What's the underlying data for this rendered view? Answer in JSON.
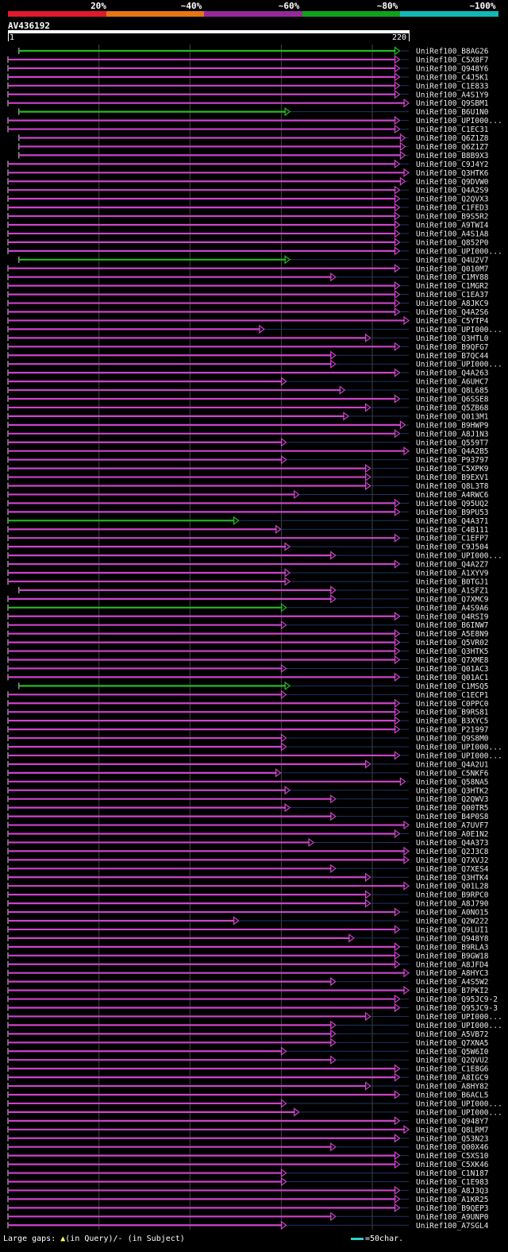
{
  "scale": {
    "labels": [
      "20%",
      "~40%",
      "~60%",
      "~80%",
      "~100%"
    ],
    "colors": [
      "#e11a2b",
      "#e87514",
      "#97289a",
      "#11a11b",
      "#12b7b6"
    ]
  },
  "query": {
    "name": "AV436192",
    "start": "1",
    "end": "220",
    "length": 220
  },
  "legend": {
    "text": "Large gaps: ",
    "query_marker": "▲",
    "query_text": "(in Query)/",
    "subject_marker": "-",
    "subject_text": " (in Subject)",
    "scale_text": "=50char."
  },
  "colors": {
    "magenta": "#cc44cc",
    "green": "#22bb22",
    "tri": "#ffff66",
    "grid": "#444"
  },
  "hits": [
    {
      "label": "UniRef100_B8AG26",
      "color": "green",
      "start": 7,
      "end": 215
    },
    {
      "label": "UniRef100_C5X8F7",
      "color": "magenta",
      "start": 1,
      "end": 215
    },
    {
      "label": "UniRef100_Q948Y6",
      "color": "magenta",
      "start": 1,
      "end": 215
    },
    {
      "label": "UniRef100_C4J5K1",
      "color": "magenta",
      "start": 1,
      "end": 215
    },
    {
      "label": "UniRef100_C1E833",
      "color": "magenta",
      "start": 1,
      "end": 215
    },
    {
      "label": "UniRef100_A4S1Y9",
      "color": "magenta",
      "start": 1,
      "end": 215
    },
    {
      "label": "UniRef100_Q9SBM1",
      "color": "magenta",
      "start": 1,
      "end": 220
    },
    {
      "label": "UniRef100_B6U1N0",
      "color": "green",
      "start": 7,
      "end": 155
    },
    {
      "label": "UniRef100_UPI000...",
      "color": "magenta",
      "start": 1,
      "end": 215
    },
    {
      "label": "UniRef100_C1EC31",
      "color": "magenta",
      "start": 1,
      "end": 215
    },
    {
      "label": "UniRef100_Q6Z1Z8",
      "color": "magenta",
      "start": 7,
      "end": 218
    },
    {
      "label": "UniRef100_Q6Z1Z7",
      "color": "magenta",
      "start": 7,
      "end": 218
    },
    {
      "label": "UniRef100_B8B9X3",
      "color": "magenta",
      "start": 7,
      "end": 218
    },
    {
      "label": "UniRef100_C9J4Y2",
      "color": "magenta",
      "start": 1,
      "end": 215
    },
    {
      "label": "UniRef100_Q3HTK6",
      "color": "magenta",
      "start": 1,
      "end": 220
    },
    {
      "label": "UniRef100_Q9DVW0",
      "color": "magenta",
      "start": 1,
      "end": 218
    },
    {
      "label": "UniRef100_Q4A2S9",
      "color": "magenta",
      "start": 1,
      "end": 215
    },
    {
      "label": "UniRef100_Q2QVX3",
      "color": "magenta",
      "start": 1,
      "end": 215
    },
    {
      "label": "UniRef100_C1FED3",
      "color": "magenta",
      "start": 1,
      "end": 215
    },
    {
      "label": "UniRef100_B9S5R2",
      "color": "magenta",
      "start": 1,
      "end": 215
    },
    {
      "label": "UniRef100_A9TWI4",
      "color": "magenta",
      "start": 1,
      "end": 215
    },
    {
      "label": "UniRef100_A4S1A8",
      "color": "magenta",
      "start": 1,
      "end": 215
    },
    {
      "label": "UniRef100_Q852P0",
      "color": "magenta",
      "start": 1,
      "end": 215
    },
    {
      "label": "UniRef100_UPI000...",
      "color": "magenta",
      "start": 1,
      "end": 215
    },
    {
      "label": "UniRef100_Q4U2V7",
      "color": "green",
      "start": 7,
      "end": 155
    },
    {
      "label": "UniRef100_Q010M7",
      "color": "magenta",
      "start": 1,
      "end": 215
    },
    {
      "label": "UniRef100_C1MY88",
      "color": "magenta",
      "start": 1,
      "end": 180
    },
    {
      "label": "UniRef100_C1MGR2",
      "color": "magenta",
      "start": 1,
      "end": 215
    },
    {
      "label": "UniRef100_C1EA37",
      "color": "magenta",
      "start": 1,
      "end": 215
    },
    {
      "label": "UniRef100_A8JKC9",
      "color": "magenta",
      "start": 1,
      "end": 215
    },
    {
      "label": "UniRef100_Q4A2S6",
      "color": "magenta",
      "start": 1,
      "end": 215
    },
    {
      "label": "UniRef100_C5YTP4",
      "color": "magenta",
      "start": 1,
      "end": 220
    },
    {
      "label": "UniRef100_UPI000...",
      "color": "magenta",
      "start": 1,
      "end": 141
    },
    {
      "label": "UniRef100_Q3HTL0",
      "color": "magenta",
      "start": 1,
      "end": 199
    },
    {
      "label": "UniRef100_B9QFG7",
      "color": "magenta",
      "start": 1,
      "end": 215
    },
    {
      "label": "UniRef100_B7QC44",
      "color": "magenta",
      "start": 1,
      "end": 180
    },
    {
      "label": "UniRef100_UPI000...",
      "color": "magenta",
      "start": 1,
      "end": 180
    },
    {
      "label": "UniRef100_Q4A263",
      "color": "magenta",
      "start": 1,
      "end": 215
    },
    {
      "label": "UniRef100_A6UHC7",
      "color": "magenta",
      "start": 1,
      "end": 153
    },
    {
      "label": "UniRef100_Q8L685",
      "color": "magenta",
      "start": 1,
      "end": 185
    },
    {
      "label": "UniRef100_Q6SSE8",
      "color": "magenta",
      "start": 1,
      "end": 215
    },
    {
      "label": "UniRef100_Q5ZB68",
      "color": "magenta",
      "start": 1,
      "end": 199
    },
    {
      "label": "UniRef100_Q013M1",
      "color": "magenta",
      "start": 1,
      "end": 187
    },
    {
      "label": "UniRef100_B9HWP9",
      "color": "magenta",
      "start": 1,
      "end": 218
    },
    {
      "label": "UniRef100_A8J1N3",
      "color": "magenta",
      "start": 1,
      "end": 215
    },
    {
      "label": "UniRef100_Q559T7",
      "color": "magenta",
      "start": 1,
      "end": 153
    },
    {
      "label": "UniRef100_Q4A2B5",
      "color": "magenta",
      "start": 1,
      "end": 220
    },
    {
      "label": "UniRef100_P93797",
      "color": "magenta",
      "start": 1,
      "end": 153
    },
    {
      "label": "UniRef100_C5XPK9",
      "color": "magenta",
      "start": 1,
      "end": 199
    },
    {
      "label": "UniRef100_B9EXV1",
      "color": "magenta",
      "start": 1,
      "end": 199
    },
    {
      "label": "UniRef100_Q8L3T8",
      "color": "magenta",
      "start": 1,
      "end": 199
    },
    {
      "label": "UniRef100_A4RWC6",
      "color": "magenta",
      "start": 1,
      "end": 160
    },
    {
      "label": "UniRef100_Q95UQ2",
      "color": "magenta",
      "start": 1,
      "end": 215
    },
    {
      "label": "UniRef100_B9PU53",
      "color": "magenta",
      "start": 1,
      "end": 215
    },
    {
      "label": "UniRef100_Q4A371",
      "color": "green",
      "start": 1,
      "end": 127
    },
    {
      "label": "UniRef100_C4B111",
      "color": "magenta",
      "start": 1,
      "end": 150
    },
    {
      "label": "UniRef100_C1EFP7",
      "color": "magenta",
      "start": 1,
      "end": 215
    },
    {
      "label": "UniRef100_C9J504",
      "color": "magenta",
      "start": 1,
      "end": 155
    },
    {
      "label": "UniRef100_UPI000...",
      "color": "magenta",
      "start": 1,
      "end": 180
    },
    {
      "label": "UniRef100_Q4A2Z7",
      "color": "magenta",
      "start": 1,
      "end": 215
    },
    {
      "label": "UniRef100_A1XYV9",
      "color": "magenta",
      "start": 1,
      "end": 155
    },
    {
      "label": "UniRef100_B0TGJ1",
      "color": "magenta",
      "start": 1,
      "end": 155
    },
    {
      "label": "UniRef100_A1SFZ1",
      "color": "magenta",
      "start": 7,
      "end": 180
    },
    {
      "label": "UniRef100_Q7XMC9",
      "color": "magenta",
      "start": 1,
      "end": 180
    },
    {
      "label": "UniRef100_A4S9A6",
      "color": "green",
      "start": 1,
      "end": 153
    },
    {
      "label": "UniRef100_Q4RSI9",
      "color": "magenta",
      "start": 1,
      "end": 215
    },
    {
      "label": "UniRef100_B6INW7",
      "color": "magenta",
      "start": 1,
      "end": 153
    },
    {
      "label": "UniRef100_A5E8N9",
      "color": "magenta",
      "start": 1,
      "end": 215
    },
    {
      "label": "UniRef100_Q5VR02",
      "color": "magenta",
      "start": 1,
      "end": 215
    },
    {
      "label": "UniRef100_Q3HTK5",
      "color": "magenta",
      "start": 1,
      "end": 215
    },
    {
      "label": "UniRef100_Q7XME8",
      "color": "magenta",
      "start": 1,
      "end": 215
    },
    {
      "label": "UniRef100_Q01AC3",
      "color": "magenta",
      "start": 1,
      "end": 153
    },
    {
      "label": "UniRef100_Q01AC1",
      "color": "magenta",
      "start": 1,
      "end": 215
    },
    {
      "label": "UniRef100_C1MSQ5",
      "color": "green",
      "start": 7,
      "end": 155
    },
    {
      "label": "UniRef100_C1ECP1",
      "color": "magenta",
      "start": 1,
      "end": 153
    },
    {
      "label": "UniRef100_C0PPC0",
      "color": "magenta",
      "start": 1,
      "end": 215
    },
    {
      "label": "UniRef100_B9RS81",
      "color": "magenta",
      "start": 1,
      "end": 215
    },
    {
      "label": "UniRef100_B3XYC5",
      "color": "magenta",
      "start": 1,
      "end": 215
    },
    {
      "label": "UniRef100_P21997",
      "color": "magenta",
      "start": 1,
      "end": 215
    },
    {
      "label": "UniRef100_Q9S8M0",
      "color": "magenta",
      "start": 1,
      "end": 153
    },
    {
      "label": "UniRef100_UPI000...",
      "color": "magenta",
      "start": 1,
      "end": 153
    },
    {
      "label": "UniRef100_UPI000...",
      "color": "magenta",
      "start": 1,
      "end": 215
    },
    {
      "label": "UniRef100_Q4A2U1",
      "color": "magenta",
      "start": 1,
      "end": 199
    },
    {
      "label": "UniRef100_C5NKF6",
      "color": "magenta",
      "start": 1,
      "end": 150
    },
    {
      "label": "UniRef100_Q58NA5",
      "color": "magenta",
      "start": 1,
      "end": 218
    },
    {
      "label": "UniRef100_Q3HTK2",
      "color": "magenta",
      "start": 1,
      "end": 155
    },
    {
      "label": "UniRef100_Q2QWV3",
      "color": "magenta",
      "start": 1,
      "end": 180
    },
    {
      "label": "UniRef100_Q00TR5",
      "color": "magenta",
      "start": 1,
      "end": 155
    },
    {
      "label": "UniRef100_B4P0S8",
      "color": "magenta",
      "start": 1,
      "end": 180
    },
    {
      "label": "UniRef100_A7UVF7",
      "color": "magenta",
      "start": 1,
      "end": 220
    },
    {
      "label": "UniRef100_A0E1N2",
      "color": "magenta",
      "start": 1,
      "end": 215
    },
    {
      "label": "UniRef100_Q4A373",
      "color": "magenta",
      "start": 1,
      "end": 168
    },
    {
      "label": "UniRef100_Q2J3C8",
      "color": "magenta",
      "start": 1,
      "end": 220
    },
    {
      "label": "UniRef100_Q7XVJ2",
      "color": "magenta",
      "start": 1,
      "end": 220
    },
    {
      "label": "UniRef100_Q7XES4",
      "color": "magenta",
      "start": 1,
      "end": 180
    },
    {
      "label": "UniRef100_Q3HTK4",
      "color": "magenta",
      "start": 1,
      "end": 199
    },
    {
      "label": "UniRef100_Q01L28",
      "color": "magenta",
      "start": 1,
      "end": 220
    },
    {
      "label": "UniRef100_B9RPC0",
      "color": "magenta",
      "start": 1,
      "end": 199
    },
    {
      "label": "UniRef100_A8J790",
      "color": "magenta",
      "start": 1,
      "end": 199
    },
    {
      "label": "UniRef100_A0NO15",
      "color": "magenta",
      "start": 1,
      "end": 215
    },
    {
      "label": "UniRef100_Q2W222",
      "color": "magenta",
      "start": 1,
      "end": 127
    },
    {
      "label": "UniRef100_Q9LUI1",
      "color": "magenta",
      "start": 1,
      "end": 215
    },
    {
      "label": "UniRef100_Q948Y8",
      "color": "magenta",
      "start": 1,
      "end": 190
    },
    {
      "label": "UniRef100_B9RLA3",
      "color": "magenta",
      "start": 1,
      "end": 215
    },
    {
      "label": "UniRef100_B9GW18",
      "color": "magenta",
      "start": 1,
      "end": 215
    },
    {
      "label": "UniRef100_A8JFD4",
      "color": "magenta",
      "start": 1,
      "end": 215
    },
    {
      "label": "UniRef100_A8HYC3",
      "color": "magenta",
      "start": 1,
      "end": 220
    },
    {
      "label": "UniRef100_A4S5W2",
      "color": "magenta",
      "start": 1,
      "end": 180
    },
    {
      "label": "UniRef100_B7PKI2",
      "color": "magenta",
      "start": 1,
      "end": 220
    },
    {
      "label": "UniRef100_Q95JC9-2",
      "color": "magenta",
      "start": 1,
      "end": 215
    },
    {
      "label": "UniRef100_Q95JC9-3",
      "color": "magenta",
      "start": 1,
      "end": 215
    },
    {
      "label": "UniRef100_UPI000...",
      "color": "magenta",
      "start": 1,
      "end": 199
    },
    {
      "label": "UniRef100_UPI000...",
      "color": "magenta",
      "start": 1,
      "end": 180
    },
    {
      "label": "UniRef100_A5VB72",
      "color": "magenta",
      "start": 1,
      "end": 180
    },
    {
      "label": "UniRef100_Q7XNA5",
      "color": "magenta",
      "start": 1,
      "end": 180
    },
    {
      "label": "UniRef100_Q5W6I0",
      "color": "magenta",
      "start": 1,
      "end": 153
    },
    {
      "label": "UniRef100_Q2QVU2",
      "color": "magenta",
      "start": 1,
      "end": 180
    },
    {
      "label": "UniRef100_C1E8G6",
      "color": "magenta",
      "start": 1,
      "end": 215
    },
    {
      "label": "UniRef100_A8IGC9",
      "color": "magenta",
      "start": 1,
      "end": 215
    },
    {
      "label": "UniRef100_A8HY82",
      "color": "magenta",
      "start": 1,
      "end": 199
    },
    {
      "label": "UniRef100_B6ACL5",
      "color": "magenta",
      "start": 1,
      "end": 215
    },
    {
      "label": "UniRef100_UPI000...",
      "color": "magenta",
      "start": 1,
      "end": 153
    },
    {
      "label": "UniRef100_UPI000...",
      "color": "magenta",
      "start": 1,
      "end": 160
    },
    {
      "label": "UniRef100_Q948Y7",
      "color": "magenta",
      "start": 1,
      "end": 215
    },
    {
      "label": "UniRef100_Q8LRM7",
      "color": "magenta",
      "start": 1,
      "end": 220
    },
    {
      "label": "UniRef100_Q53N23",
      "color": "magenta",
      "start": 1,
      "end": 215
    },
    {
      "label": "UniRef100_Q00X46",
      "color": "magenta",
      "start": 1,
      "end": 180
    },
    {
      "label": "UniRef100_C5XS10",
      "color": "magenta",
      "start": 1,
      "end": 215
    },
    {
      "label": "UniRef100_C5XK46",
      "color": "magenta",
      "start": 1,
      "end": 215
    },
    {
      "label": "UniRef100_C1N187",
      "color": "magenta",
      "start": 1,
      "end": 153
    },
    {
      "label": "UniRef100_C1E983",
      "color": "magenta",
      "start": 1,
      "end": 153
    },
    {
      "label": "UniRef100_A8J3Q3",
      "color": "magenta",
      "start": 1,
      "end": 215
    },
    {
      "label": "UniRef100_A1KR25",
      "color": "magenta",
      "start": 1,
      "end": 215
    },
    {
      "label": "UniRef100_B9QEP3",
      "color": "magenta",
      "start": 1,
      "end": 215
    },
    {
      "label": "UniRef100_A9UNP0",
      "color": "magenta",
      "start": 1,
      "end": 180
    },
    {
      "label": "UniRef100_A7SGL4",
      "color": "magenta",
      "start": 1,
      "end": 153
    }
  ]
}
